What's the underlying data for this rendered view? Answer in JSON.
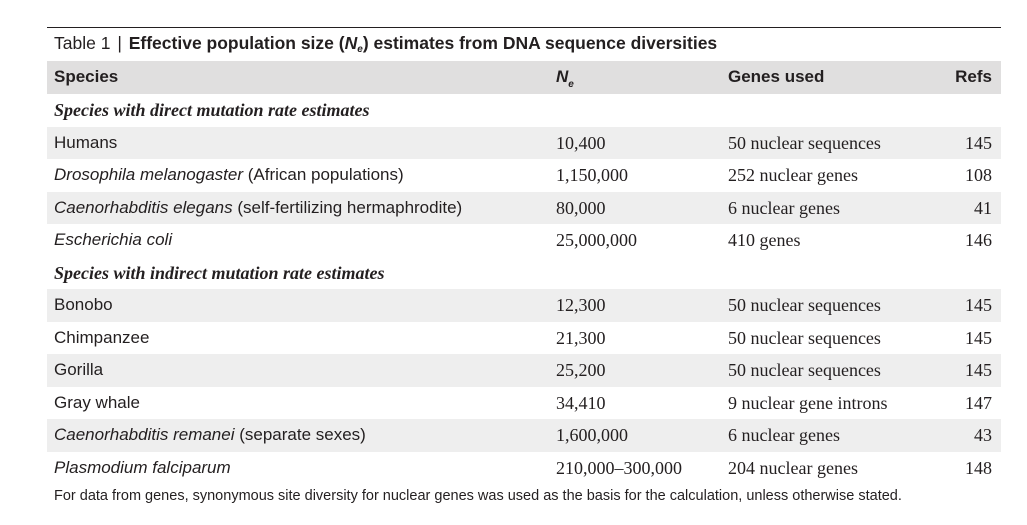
{
  "caption": {
    "table_number": "Table 1",
    "separator": "|",
    "title_pre": "Effective population size (",
    "title_var": "N",
    "title_sub": "e",
    "title_post": ") estimates from DNA sequence diversities"
  },
  "header": {
    "species": "Species",
    "ne_var": "N",
    "ne_sub": "e",
    "genes": "Genes used",
    "refs": "Refs"
  },
  "sections": [
    {
      "title": "Species with direct mutation rate estimates",
      "rows": [
        {
          "species_italic": "",
          "species_plain": "Humans",
          "ne": "10,400",
          "genes": "50 nuclear sequences",
          "refs": "145"
        },
        {
          "species_italic": "Drosophila melanogaster",
          "species_plain": " (African populations)",
          "ne": "1,150,000",
          "genes": "252 nuclear genes",
          "refs": "108"
        },
        {
          "species_italic": "Caenorhabditis elegans",
          "species_plain": " (self-fertilizing hermaphrodite)",
          "ne": "80,000",
          "genes": "6 nuclear genes",
          "refs": "41"
        },
        {
          "species_italic": "Escherichia coli",
          "species_plain": "",
          "ne": "25,000,000",
          "genes": "410 genes",
          "refs": "146"
        }
      ]
    },
    {
      "title": "Species with indirect mutation rate estimates",
      "rows": [
        {
          "species_italic": "",
          "species_plain": "Bonobo",
          "ne": "12,300",
          "genes": "50 nuclear sequences",
          "refs": "145"
        },
        {
          "species_italic": "",
          "species_plain": "Chimpanzee",
          "ne": "21,300",
          "genes": "50 nuclear sequences",
          "refs": "145"
        },
        {
          "species_italic": "",
          "species_plain": "Gorilla",
          "ne": "25,200",
          "genes": "50 nuclear sequences",
          "refs": "145"
        },
        {
          "species_italic": "",
          "species_plain": "Gray whale",
          "ne": "34,410",
          "genes": "9 nuclear gene introns",
          "refs": "147"
        },
        {
          "species_italic": "Caenorhabditis remanei",
          "species_plain": " (separate sexes)",
          "ne": "1,600,000",
          "genes": "6 nuclear genes",
          "refs": "43"
        },
        {
          "species_italic": "Plasmodium falciparum",
          "species_plain": "",
          "ne": "210,000–300,000",
          "genes": "204 nuclear genes",
          "refs": "148"
        }
      ]
    }
  ],
  "footnote": "For data from genes, synonymous site diversity for nuclear genes was used as the basis for the calculation, unless otherwise stated."
}
